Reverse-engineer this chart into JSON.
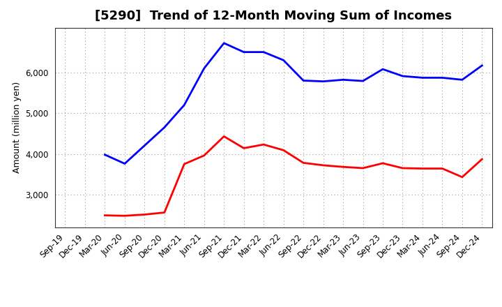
{
  "title": "[5290]  Trend of 12-Month Moving Sum of Incomes",
  "ylabel": "Amount (million yen)",
  "x_labels": [
    "Sep-19",
    "Dec-19",
    "Mar-20",
    "Jun-20",
    "Sep-20",
    "Dec-20",
    "Mar-21",
    "Jun-21",
    "Sep-21",
    "Dec-21",
    "Mar-22",
    "Jun-22",
    "Sep-22",
    "Dec-22",
    "Mar-23",
    "Jun-23",
    "Sep-23",
    "Dec-23",
    "Mar-24",
    "Jun-24",
    "Sep-24",
    "Dec-24"
  ],
  "ordinary_income": [
    null,
    null,
    3980,
    3760,
    null,
    4650,
    5200,
    6100,
    6720,
    6500,
    6500,
    6300,
    5800,
    5780,
    5820,
    5790,
    6080,
    5910,
    5870,
    5870,
    5820,
    6170
  ],
  "net_income": [
    null,
    null,
    2490,
    2480,
    2510,
    2560,
    3750,
    3960,
    4430,
    4140,
    4230,
    4090,
    3780,
    3720,
    3680,
    3650,
    3770,
    3650,
    3640,
    3640,
    3430,
    3870
  ],
  "ordinary_income_color": "#0000FF",
  "net_income_color": "#FF0000",
  "ylim_min": 2200,
  "ylim_max": 7100,
  "yticks": [
    3000,
    4000,
    5000,
    6000
  ],
  "bg_color": "#FFFFFF",
  "plot_bg_color": "#FFFFFF",
  "grid_color": "#999999",
  "title_fontsize": 13,
  "tick_fontsize": 8.5
}
